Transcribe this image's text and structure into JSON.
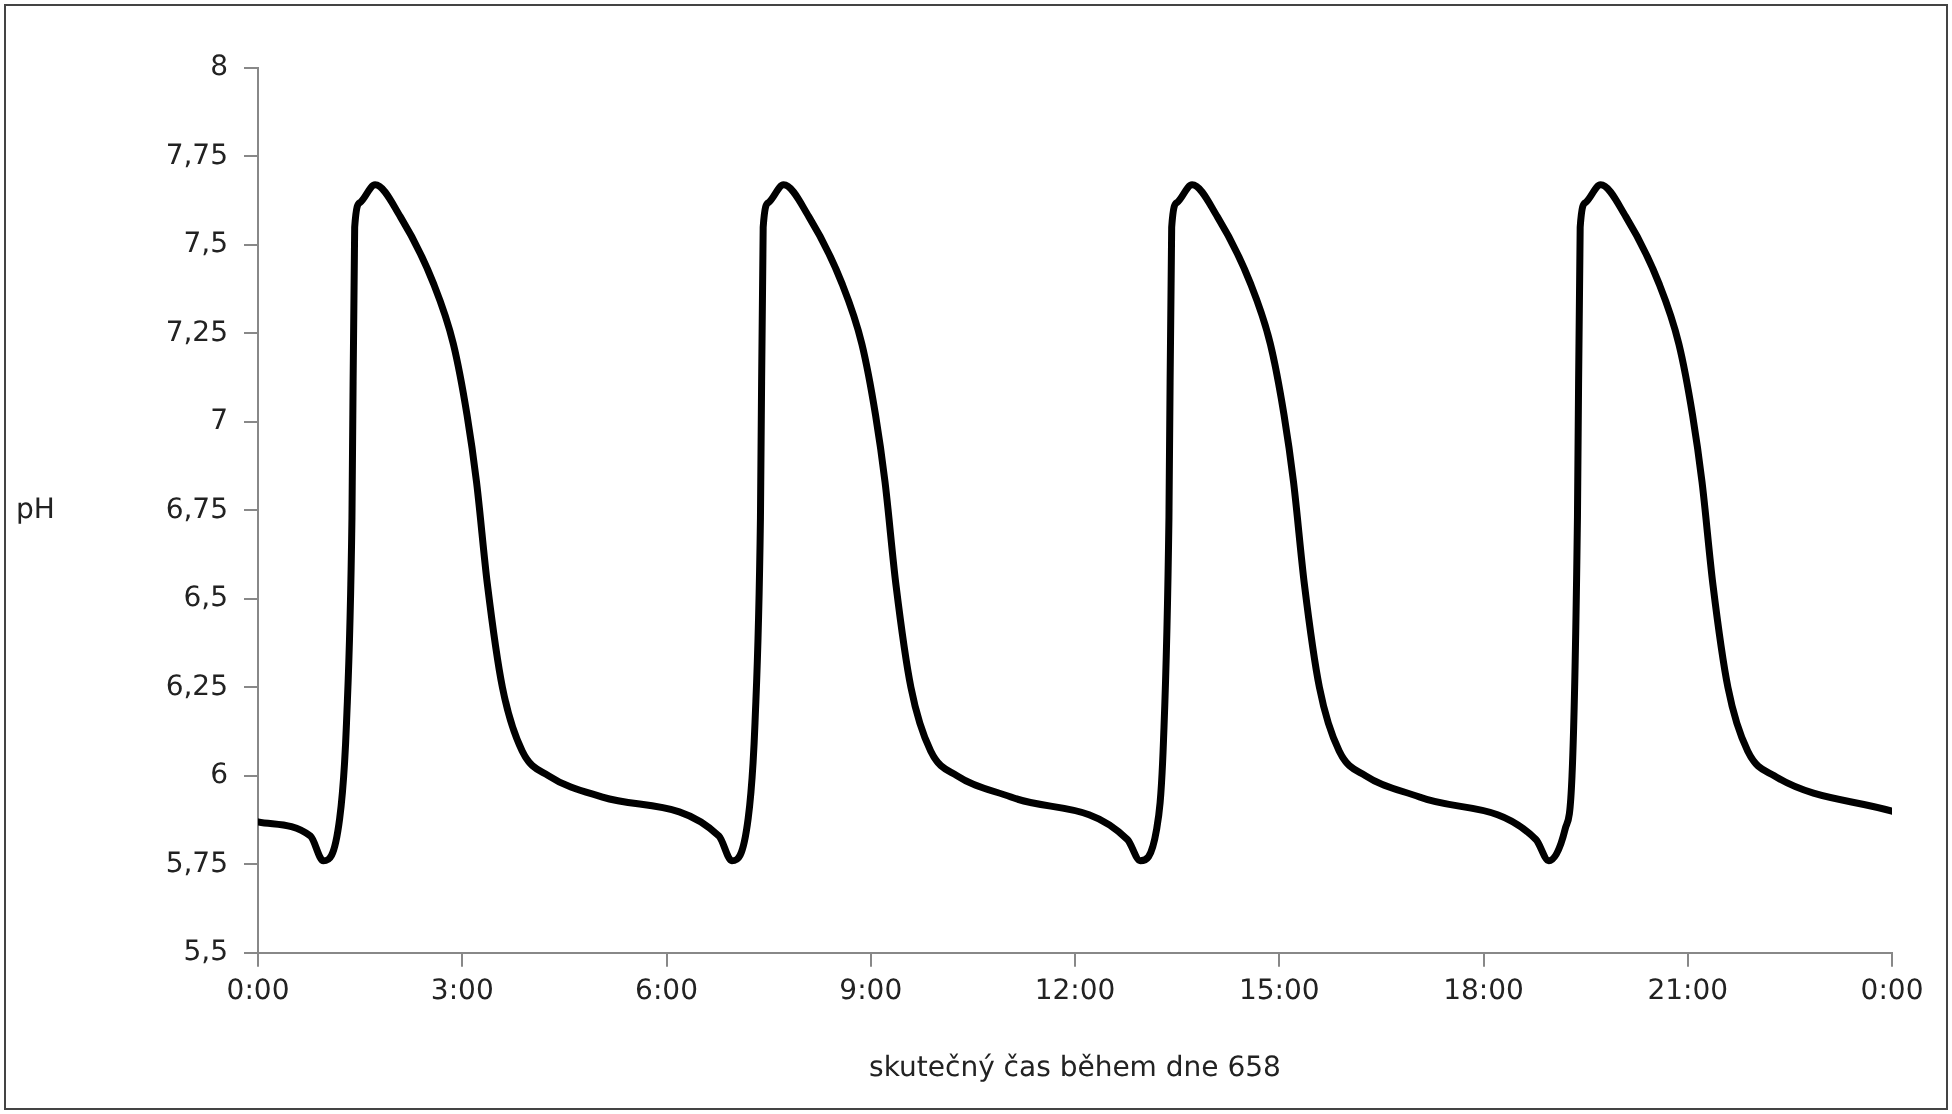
{
  "chart_data": {
    "type": "line",
    "xlabel": "skutečný čas během dne 658",
    "ylabel": "pH",
    "x": [
      0,
      0.77,
      0.96,
      1.2,
      1.3,
      1.38,
      1.42,
      1.5,
      1.72,
      2.09,
      2.58,
      2.87,
      3.07,
      3.21,
      3.37,
      3.59,
      3.88,
      4.27,
      5.06,
      6.77,
      6.96,
      7.2,
      7.3,
      7.38,
      7.42,
      7.5,
      7.72,
      8.09,
      8.58,
      8.87,
      9.07,
      9.21,
      9.37,
      9.59,
      9.88,
      10.27,
      11.06,
      12.77,
      12.96,
      13.2,
      13.3,
      13.38,
      13.42,
      13.5,
      13.72,
      14.09,
      14.58,
      14.87,
      15.07,
      15.21,
      15.37,
      15.59,
      15.88,
      16.27,
      17.06,
      18.77,
      18.96,
      19.2,
      19.3,
      19.38,
      19.42,
      19.5,
      19.72,
      20.09,
      20.58,
      20.87,
      21.07,
      21.21,
      21.37,
      21.59,
      21.88,
      22.27,
      24
    ],
    "series": [
      {
        "color": "#000000",
        "values": [
          5.87,
          5.83,
          5.76,
          5.88,
          6.15,
          6.73,
          7.55,
          7.62,
          7.67,
          7.58,
          7.39,
          7.22,
          7.02,
          6.83,
          6.54,
          6.25,
          6.07,
          6.0,
          5.94,
          5.83,
          5.76,
          5.88,
          6.15,
          6.73,
          7.55,
          7.62,
          7.67,
          7.58,
          7.39,
          7.22,
          7.02,
          6.83,
          6.54,
          6.25,
          6.07,
          6.0,
          5.94,
          5.82,
          5.76,
          5.85,
          6.1,
          6.73,
          7.55,
          7.62,
          7.67,
          7.58,
          7.39,
          7.22,
          7.02,
          6.83,
          6.54,
          6.25,
          6.07,
          6.0,
          5.94,
          5.82,
          5.76,
          5.85,
          6.0,
          6.73,
          7.55,
          7.62,
          7.67,
          7.58,
          7.39,
          7.22,
          7.02,
          6.83,
          6.54,
          6.25,
          6.07,
          6.0,
          5.9
        ]
      }
    ],
    "xlim": [
      0,
      24
    ],
    "xticks": [
      {
        "value": 0,
        "label": "0:00"
      },
      {
        "value": 3,
        "label": "3:00"
      },
      {
        "value": 6,
        "label": "6:00"
      },
      {
        "value": 9,
        "label": "9:00"
      },
      {
        "value": 12,
        "label": "12:00"
      },
      {
        "value": 15,
        "label": "15:00"
      },
      {
        "value": 18,
        "label": "18:00"
      },
      {
        "value": 21,
        "label": "21:00"
      },
      {
        "value": 24,
        "label": "0:00"
      }
    ],
    "ylim": [
      5.5,
      8
    ],
    "yticks": [
      {
        "value": 5.5,
        "label": "5,5"
      },
      {
        "value": 5.75,
        "label": "5,75"
      },
      6,
      {
        "value": 6.25,
        "label": "6,25"
      },
      {
        "value": 6.5,
        "label": "6,5"
      },
      {
        "value": 6.75,
        "label": "6,75"
      },
      7,
      {
        "value": 7.25,
        "label": "7,25"
      },
      {
        "value": 7.5,
        "label": "7,5"
      },
      {
        "value": 7.75,
        "label": "7,75"
      },
      8
    ],
    "grid": false,
    "legend": false,
    "marker": "none",
    "line_style": "solid"
  }
}
